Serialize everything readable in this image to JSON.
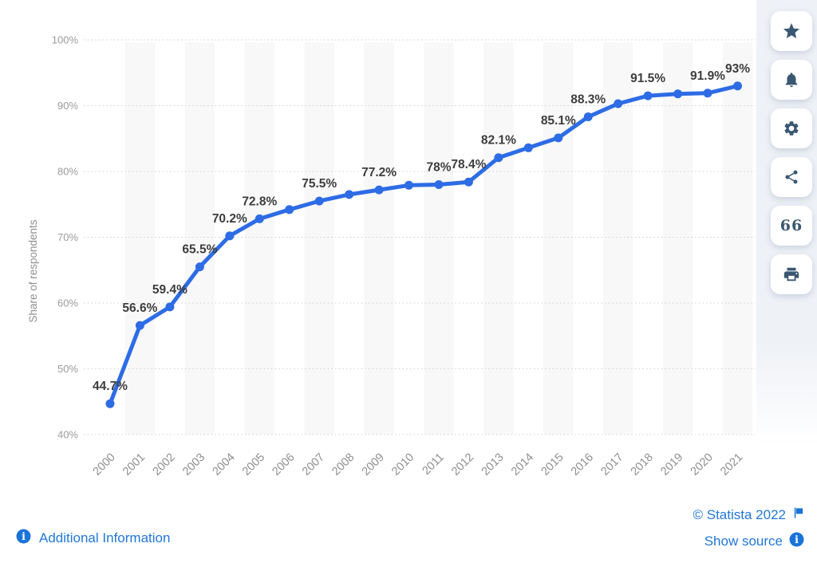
{
  "chart_data": {
    "type": "line",
    "title": "",
    "xlabel": "",
    "ylabel": "Share of respondents",
    "x": [
      2000,
      2001,
      2002,
      2003,
      2004,
      2005,
      2006,
      2007,
      2008,
      2009,
      2010,
      2011,
      2012,
      2013,
      2014,
      2015,
      2016,
      2017,
      2018,
      2019,
      2020,
      2021
    ],
    "values": [
      44.7,
      56.6,
      59.4,
      65.5,
      70.2,
      72.8,
      74.2,
      75.5,
      76.5,
      77.2,
      77.9,
      78.0,
      78.4,
      82.1,
      83.6,
      85.1,
      88.3,
      90.3,
      91.5,
      91.8,
      91.9,
      93.0
    ],
    "point_labels": [
      "44.7%",
      "56.6%",
      "59.4%",
      "65.5%",
      "70.2%",
      "72.8%",
      null,
      "75.5%",
      null,
      "77.2%",
      null,
      "78%",
      "78.4%",
      "82.1%",
      null,
      "85.1%",
      "88.3%",
      null,
      "91.5%",
      null,
      "91.9%",
      "93%"
    ],
    "ytick_labels": [
      "100%",
      "90%",
      "80%",
      "70%",
      "60%",
      "50%",
      "40%"
    ],
    "ytick_values": [
      100,
      90,
      80,
      70,
      60,
      50,
      40
    ],
    "ylim": [
      40,
      100
    ],
    "grid": "horizontal-dotted",
    "plot_bands": "alternating-vertical-stripes-on-odd-years",
    "legend": "none",
    "line_color": "#2d6ce5",
    "marker_color": "#2d6ce5",
    "stripe_color": "#f8f8f9",
    "gridline_color": "#d0d0d0",
    "value_label_color": "#3d3d3d",
    "tick_label_color": "#9b9b9b",
    "axis_title_color": "#8f8f8f"
  },
  "sidebar": {
    "buttons": [
      {
        "icon": "star"
      },
      {
        "icon": "bell"
      },
      {
        "icon": "gear"
      },
      {
        "icon": "share"
      },
      {
        "icon": "quote"
      },
      {
        "icon": "printer"
      }
    ]
  },
  "footer": {
    "additional_information": "Additional Information",
    "copyright": "© Statista 2022",
    "show_source": "Show source"
  },
  "colors": {
    "link_blue": "#2277d7",
    "info_icon_blue": "#1a73d8",
    "rail_icon_navy": "#3b5872",
    "rail_background": "#eef1f6"
  }
}
